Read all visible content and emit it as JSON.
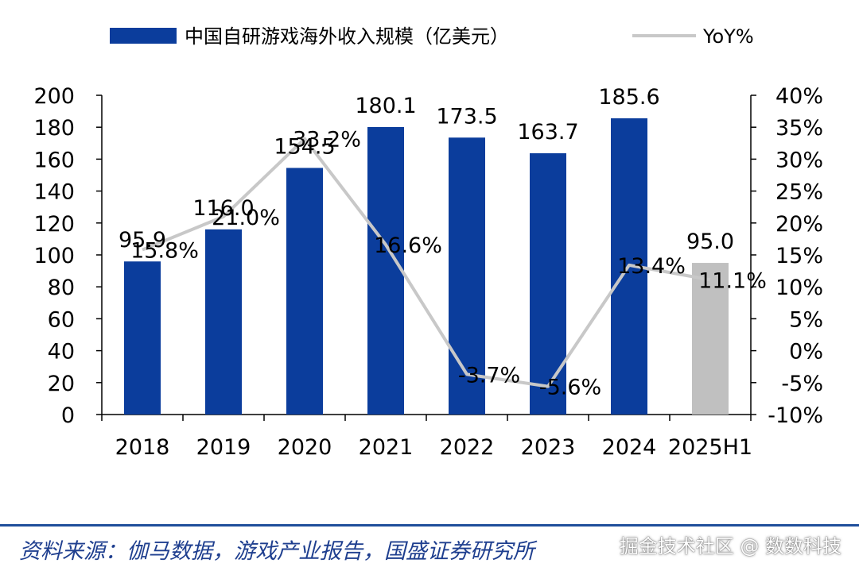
{
  "chart_data": {
    "type": "bar",
    "categories": [
      "2018",
      "2019",
      "2020",
      "2021",
      "2022",
      "2023",
      "2024",
      "2025H1"
    ],
    "series": [
      {
        "name": "中国自研游戏海外收入规模（亿美元）",
        "type": "bar",
        "axis": "left",
        "values": [
          95.9,
          116.0,
          154.5,
          180.1,
          173.5,
          163.7,
          185.6,
          95.0
        ],
        "labels": [
          "95.9",
          "116.0",
          "154.5",
          "180.1",
          "173.5",
          "163.7",
          "185.6",
          "95.0"
        ],
        "color": "#0b3d9c",
        "highlight_color": "#c0c0c0",
        "highlight_index": 7
      },
      {
        "name": "YoY%",
        "type": "line",
        "axis": "right",
        "values": [
          15.8,
          21.0,
          33.2,
          16.6,
          -3.7,
          -5.6,
          13.4,
          11.1
        ],
        "labels": [
          "15.8%",
          "21.0%",
          "33.2%",
          "16.6%",
          "-3.7%",
          "-5.6%",
          "13.4%",
          "11.1%"
        ],
        "color": "#c8c8c8"
      }
    ],
    "left_axis": {
      "ylim": [
        0,
        200
      ],
      "ticks": [
        0,
        20,
        40,
        60,
        80,
        100,
        120,
        140,
        160,
        180,
        200
      ],
      "tick_labels": [
        "0",
        "20",
        "40",
        "60",
        "80",
        "100",
        "120",
        "140",
        "160",
        "180",
        "200"
      ]
    },
    "right_axis": {
      "ylim": [
        -10,
        40
      ],
      "ticks": [
        -10,
        -5,
        0,
        5,
        10,
        15,
        20,
        25,
        30,
        35,
        40
      ],
      "tick_labels": [
        "-10%",
        "-5%",
        "0%",
        "5%",
        "10%",
        "15%",
        "20%",
        "25%",
        "30%",
        "35%",
        "40%"
      ]
    },
    "legend": {
      "placement": "top",
      "entries": [
        "中国自研游戏海外收入规模（亿美元）",
        "YoY%"
      ]
    },
    "grid": false
  },
  "source": "资料来源：伽马数据，游戏产业报告，国盛证券研究所",
  "watermark": "掘金技术社区 @ 数数科技"
}
